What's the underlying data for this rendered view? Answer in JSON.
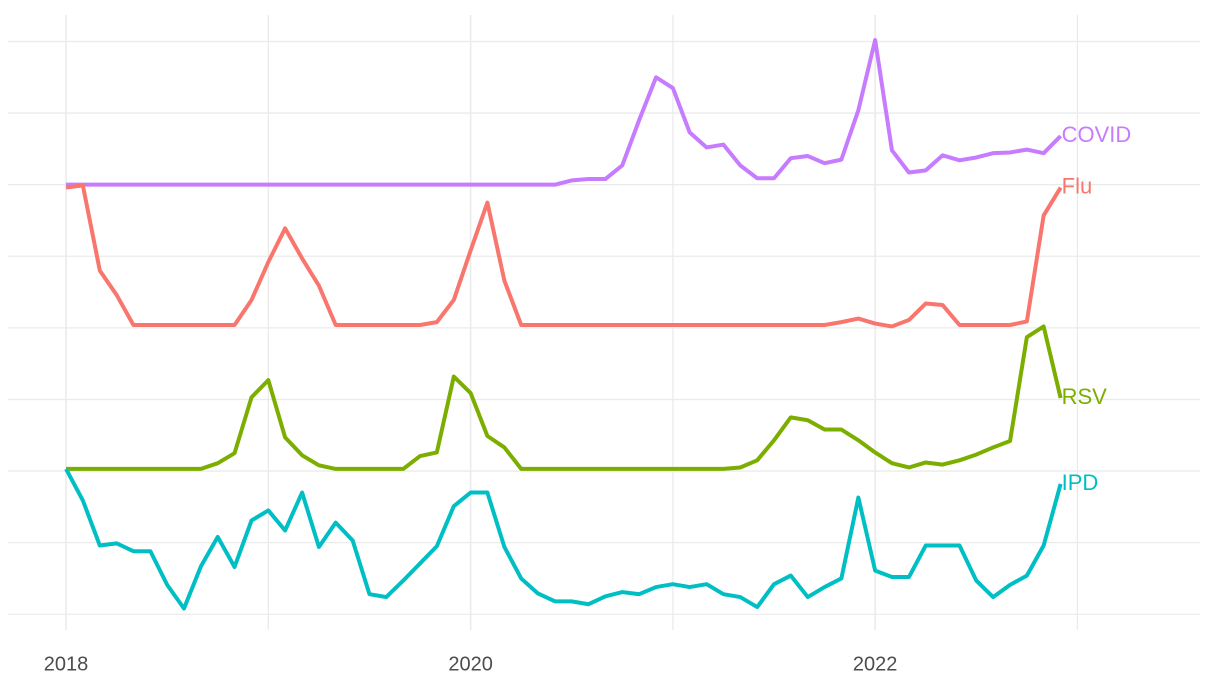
{
  "chart_data": {
    "type": "line",
    "x": [
      2018,
      2018.083,
      2018.167,
      2018.25,
      2018.333,
      2018.417,
      2018.5,
      2018.583,
      2018.667,
      2018.75,
      2018.833,
      2018.917,
      2019,
      2019.083,
      2019.167,
      2019.25,
      2019.333,
      2019.417,
      2019.5,
      2019.583,
      2019.667,
      2019.75,
      2019.833,
      2019.917,
      2020,
      2020.083,
      2020.167,
      2020.25,
      2020.333,
      2020.417,
      2020.5,
      2020.583,
      2020.667,
      2020.75,
      2020.833,
      2020.917,
      2021,
      2021.083,
      2021.167,
      2021.25,
      2021.333,
      2021.417,
      2021.5,
      2021.583,
      2021.667,
      2021.75,
      2021.833,
      2021.917,
      2022,
      2022.083,
      2022.167,
      2022.25,
      2022.333,
      2022.417,
      2022.5,
      2022.583,
      2022.667,
      2022.75,
      2022.833,
      2022.917
    ],
    "series": [
      {
        "name": "COVID",
        "color": "#c77cff",
        "values": [
          6,
          6,
          6,
          6,
          6,
          6,
          6,
          6,
          6,
          6,
          6,
          6,
          6,
          6,
          6,
          6,
          6,
          6,
          6,
          6,
          6,
          6,
          6,
          6,
          6,
          6,
          6,
          6,
          6,
          6,
          6.06,
          6.08,
          6.08,
          6.27,
          6.9,
          7.5,
          7.35,
          6.73,
          6.52,
          6.56,
          6.27,
          6.09,
          6.09,
          6.37,
          6.4,
          6.3,
          6.35,
          7.04,
          8.02,
          6.48,
          6.17,
          6.2,
          6.41,
          6.34,
          6.38,
          6.44,
          6.45,
          6.49,
          6.44,
          6.68
        ]
      },
      {
        "name": "Flu",
        "color": "#f8766d",
        "values": [
          5.96,
          5.99,
          4.8,
          4.46,
          4.04,
          4.04,
          4.04,
          4.04,
          4.04,
          4.04,
          4.04,
          4.39,
          4.92,
          5.39,
          4.97,
          4.59,
          4.04,
          4.04,
          4.04,
          4.04,
          4.04,
          4.04,
          4.08,
          4.39,
          5.08,
          5.75,
          4.66,
          4.04,
          4.04,
          4.04,
          4.04,
          4.04,
          4.04,
          4.04,
          4.04,
          4.04,
          4.04,
          4.04,
          4.04,
          4.04,
          4.04,
          4.04,
          4.04,
          4.04,
          4.04,
          4.04,
          4.08,
          4.13,
          4.06,
          4.02,
          4.11,
          4.34,
          4.32,
          4.04,
          4.04,
          4.04,
          4.04,
          4.09,
          5.57,
          5.96
        ]
      },
      {
        "name": "RSV",
        "color": "#7cae00",
        "values": [
          2.03,
          2.03,
          2.03,
          2.03,
          2.03,
          2.03,
          2.03,
          2.03,
          2.03,
          2.11,
          2.25,
          3.03,
          3.27,
          2.47,
          2.22,
          2.08,
          2.03,
          2.03,
          2.03,
          2.03,
          2.03,
          2.21,
          2.26,
          3.32,
          3.09,
          2.49,
          2.33,
          2.03,
          2.03,
          2.03,
          2.03,
          2.03,
          2.03,
          2.03,
          2.03,
          2.03,
          2.03,
          2.03,
          2.03,
          2.03,
          2.05,
          2.15,
          2.43,
          2.75,
          2.71,
          2.58,
          2.58,
          2.43,
          2.26,
          2.11,
          2.05,
          2.12,
          2.09,
          2.15,
          2.23,
          2.33,
          2.42,
          3.87,
          4.02,
          3.02
        ]
      },
      {
        "name": "IPD",
        "color": "#00bfc4",
        "values": [
          2.03,
          1.59,
          0.96,
          0.99,
          0.88,
          0.88,
          0.41,
          0.08,
          0.67,
          1.08,
          0.66,
          1.31,
          1.45,
          1.17,
          1.7,
          0.94,
          1.28,
          1.03,
          0.28,
          0.24,
          0.47,
          0.71,
          0.95,
          1.51,
          1.7,
          1.7,
          0.94,
          0.5,
          0.29,
          0.18,
          0.18,
          0.14,
          0.25,
          0.31,
          0.28,
          0.38,
          0.42,
          0.38,
          0.42,
          0.28,
          0.24,
          0.1,
          0.42,
          0.54,
          0.24,
          0.38,
          0.5,
          1.63,
          0.61,
          0.52,
          0.52,
          0.96,
          0.96,
          0.96,
          0.47,
          0.24,
          0.41,
          0.54,
          0.96,
          1.82
        ]
      }
    ],
    "xlim": [
      2017.713,
      2023.606
    ],
    "xticks": [
      2018,
      2020,
      2022
    ],
    "xminor": [
      2019,
      2021,
      2023
    ],
    "ylim": [
      -0.22,
      8.37
    ],
    "yticks": [
      0,
      1,
      2,
      3,
      4,
      5,
      6,
      7,
      8
    ],
    "grid": true
  }
}
